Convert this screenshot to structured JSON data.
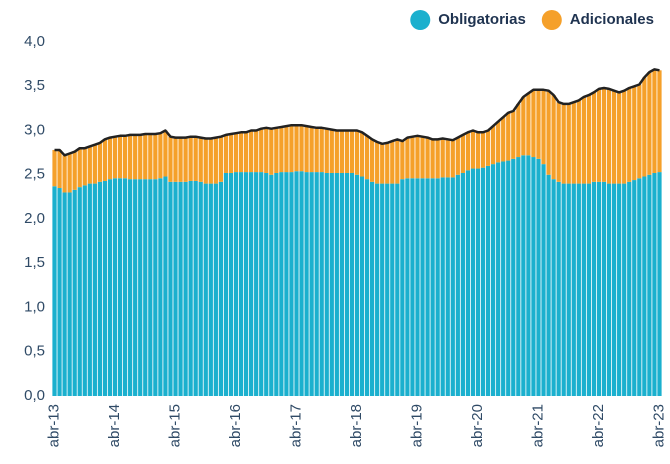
{
  "chart_data": {
    "type": "stacked_bar",
    "categories": [
      "abr-13",
      null,
      null,
      null,
      null,
      null,
      null,
      null,
      null,
      null,
      null,
      null,
      "abr-14",
      null,
      null,
      null,
      null,
      null,
      null,
      null,
      null,
      null,
      null,
      null,
      "abr-15",
      null,
      null,
      null,
      null,
      null,
      null,
      null,
      null,
      null,
      null,
      null,
      "abr-16",
      null,
      null,
      null,
      null,
      null,
      null,
      null,
      null,
      null,
      null,
      null,
      "abr-17",
      null,
      null,
      null,
      null,
      null,
      null,
      null,
      null,
      null,
      null,
      null,
      "abr-18",
      null,
      null,
      null,
      null,
      null,
      null,
      null,
      null,
      null,
      null,
      null,
      "abr-19",
      null,
      null,
      null,
      null,
      null,
      null,
      null,
      null,
      null,
      null,
      null,
      "abr-20",
      null,
      null,
      null,
      null,
      null,
      null,
      null,
      null,
      null,
      null,
      null,
      "abr-21",
      null,
      null,
      null,
      null,
      null,
      null,
      null,
      null,
      null,
      null,
      null,
      "abr-22",
      null,
      null,
      null,
      null,
      null,
      null,
      null,
      null,
      null,
      null,
      null,
      "abr-23"
    ],
    "series": [
      {
        "name": "Obligatorias",
        "color": "#1bb0ce",
        "values": [
          2.37,
          2.35,
          2.3,
          2.3,
          2.33,
          2.36,
          2.38,
          2.4,
          2.4,
          2.42,
          2.43,
          2.45,
          2.46,
          2.46,
          2.46,
          2.45,
          2.45,
          2.45,
          2.45,
          2.45,
          2.45,
          2.46,
          2.48,
          2.42,
          2.42,
          2.42,
          2.42,
          2.43,
          2.43,
          2.42,
          2.4,
          2.4,
          2.4,
          2.42,
          2.52,
          2.52,
          2.53,
          2.53,
          2.53,
          2.53,
          2.53,
          2.53,
          2.52,
          2.5,
          2.52,
          2.53,
          2.53,
          2.53,
          2.54,
          2.54,
          2.53,
          2.53,
          2.53,
          2.53,
          2.52,
          2.52,
          2.52,
          2.52,
          2.52,
          2.52,
          2.5,
          2.48,
          2.45,
          2.42,
          2.4,
          2.4,
          2.4,
          2.4,
          2.4,
          2.45,
          2.46,
          2.46,
          2.46,
          2.46,
          2.46,
          2.46,
          2.46,
          2.47,
          2.47,
          2.47,
          2.5,
          2.52,
          2.55,
          2.57,
          2.57,
          2.58,
          2.6,
          2.62,
          2.64,
          2.65,
          2.66,
          2.68,
          2.7,
          2.72,
          2.72,
          2.7,
          2.68,
          2.62,
          2.5,
          2.45,
          2.42,
          2.4,
          2.4,
          2.4,
          2.4,
          2.4,
          2.4,
          2.42,
          2.42,
          2.42,
          2.4,
          2.4,
          2.4,
          2.4,
          2.42,
          2.44,
          2.46,
          2.48,
          2.5,
          2.52,
          2.53
        ]
      },
      {
        "name": "Adicionales",
        "color": "#f5a02a",
        "values": [
          0.41,
          0.43,
          0.42,
          0.44,
          0.43,
          0.44,
          0.42,
          0.42,
          0.44,
          0.44,
          0.47,
          0.47,
          0.47,
          0.48,
          0.48,
          0.5,
          0.5,
          0.5,
          0.51,
          0.51,
          0.51,
          0.51,
          0.52,
          0.51,
          0.5,
          0.5,
          0.5,
          0.5,
          0.5,
          0.5,
          0.51,
          0.51,
          0.52,
          0.51,
          0.43,
          0.44,
          0.44,
          0.45,
          0.45,
          0.47,
          0.47,
          0.49,
          0.51,
          0.52,
          0.51,
          0.51,
          0.52,
          0.53,
          0.52,
          0.52,
          0.52,
          0.51,
          0.5,
          0.5,
          0.5,
          0.49,
          0.48,
          0.48,
          0.48,
          0.48,
          0.5,
          0.5,
          0.49,
          0.48,
          0.47,
          0.45,
          0.46,
          0.48,
          0.5,
          0.43,
          0.46,
          0.47,
          0.48,
          0.47,
          0.46,
          0.44,
          0.44,
          0.44,
          0.43,
          0.42,
          0.42,
          0.43,
          0.43,
          0.43,
          0.41,
          0.4,
          0.4,
          0.43,
          0.46,
          0.5,
          0.54,
          0.54,
          0.6,
          0.66,
          0.7,
          0.76,
          0.78,
          0.84,
          0.95,
          0.95,
          0.9,
          0.9,
          0.9,
          0.92,
          0.94,
          0.98,
          1.0,
          1.01,
          1.05,
          1.06,
          1.07,
          1.05,
          1.03,
          1.05,
          1.06,
          1.06,
          1.06,
          1.12,
          1.16,
          1.17,
          1.15
        ]
      }
    ],
    "ylim": [
      0,
      4
    ],
    "yticks": [
      {
        "value": 0,
        "label": "0,0"
      },
      {
        "value": 0.5,
        "label": "0,5"
      },
      {
        "value": 1,
        "label": "1,0"
      },
      {
        "value": 1.5,
        "label": "1,5"
      },
      {
        "value": 2,
        "label": "2,0"
      },
      {
        "value": 2.5,
        "label": "2,5"
      },
      {
        "value": 3,
        "label": "3,0"
      },
      {
        "value": 3.5,
        "label": "3,5"
      },
      {
        "value": 4,
        "label": "4,0"
      }
    ],
    "legend": "top-right"
  }
}
